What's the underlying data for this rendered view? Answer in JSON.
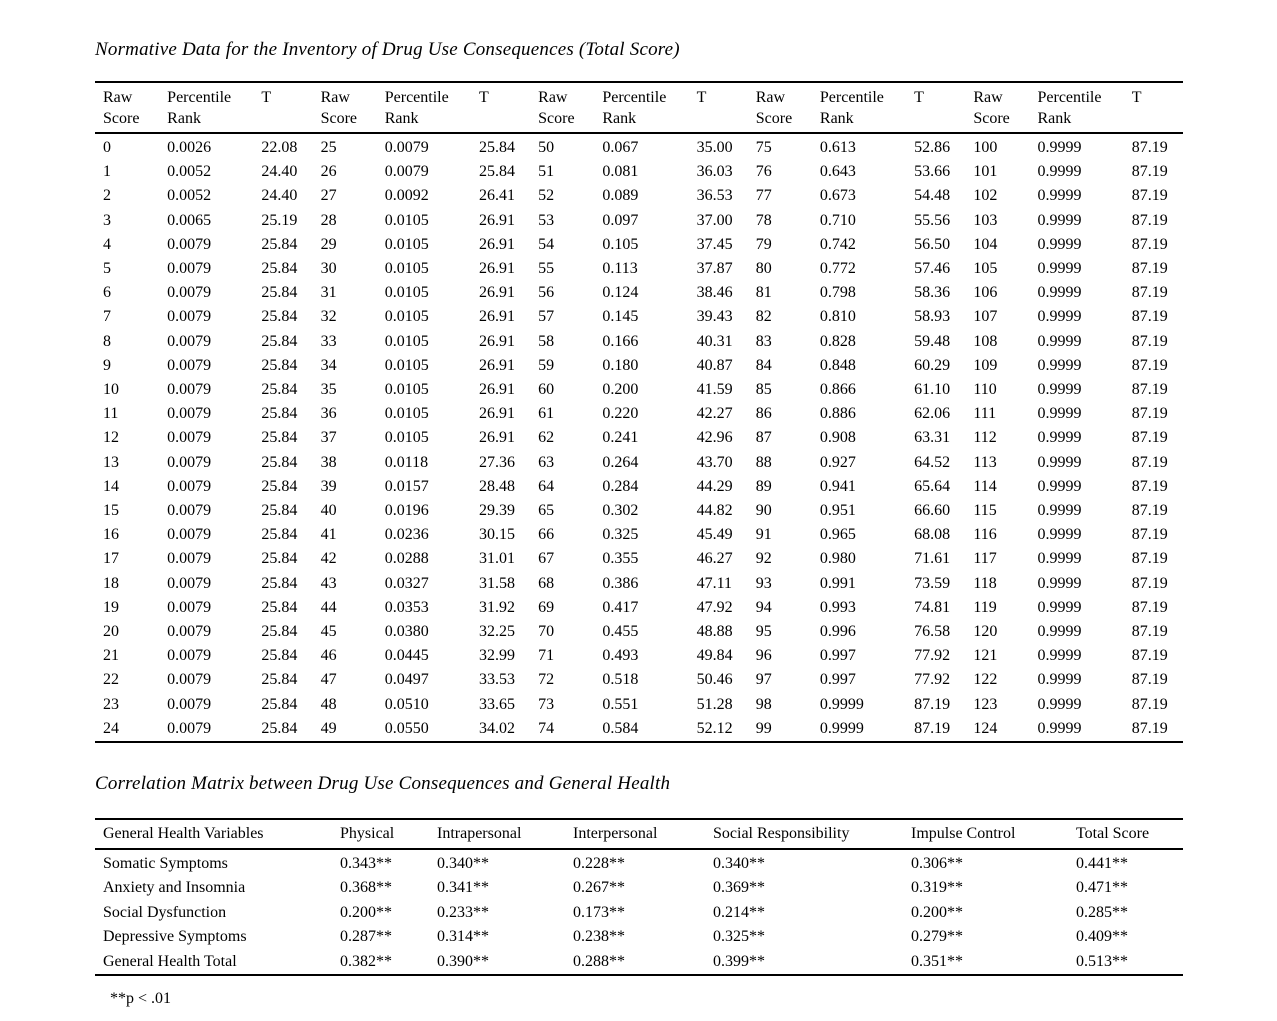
{
  "table1": {
    "title": "Normative Data for the Inventory of Drug Use Consequences (Total Score)",
    "column_headers": [
      "Raw Score",
      "Percentile Rank",
      "T"
    ],
    "group_count": 5,
    "rows": [
      [
        "0",
        "0.0026",
        "22.08",
        "25",
        "0.0079",
        "25.84",
        "50",
        "0.067",
        "35.00",
        "75",
        "0.613",
        "52.86",
        "100",
        "0.9999",
        "87.19"
      ],
      [
        "1",
        "0.0052",
        "24.40",
        "26",
        "0.0079",
        "25.84",
        "51",
        "0.081",
        "36.03",
        "76",
        "0.643",
        "53.66",
        "101",
        "0.9999",
        "87.19"
      ],
      [
        "2",
        "0.0052",
        "24.40",
        "27",
        "0.0092",
        "26.41",
        "52",
        "0.089",
        "36.53",
        "77",
        "0.673",
        "54.48",
        "102",
        "0.9999",
        "87.19"
      ],
      [
        "3",
        "0.0065",
        "25.19",
        "28",
        "0.0105",
        "26.91",
        "53",
        "0.097",
        "37.00",
        "78",
        "0.710",
        "55.56",
        "103",
        "0.9999",
        "87.19"
      ],
      [
        "4",
        "0.0079",
        "25.84",
        "29",
        "0.0105",
        "26.91",
        "54",
        "0.105",
        "37.45",
        "79",
        "0.742",
        "56.50",
        "104",
        "0.9999",
        "87.19"
      ],
      [
        "5",
        "0.0079",
        "25.84",
        "30",
        "0.0105",
        "26.91",
        "55",
        "0.113",
        "37.87",
        "80",
        "0.772",
        "57.46",
        "105",
        "0.9999",
        "87.19"
      ],
      [
        "6",
        "0.0079",
        "25.84",
        "31",
        "0.0105",
        "26.91",
        "56",
        "0.124",
        "38.46",
        "81",
        "0.798",
        "58.36",
        "106",
        "0.9999",
        "87.19"
      ],
      [
        "7",
        "0.0079",
        "25.84",
        "32",
        "0.0105",
        "26.91",
        "57",
        "0.145",
        "39.43",
        "82",
        "0.810",
        "58.93",
        "107",
        "0.9999",
        "87.19"
      ],
      [
        "8",
        "0.0079",
        "25.84",
        "33",
        "0.0105",
        "26.91",
        "58",
        "0.166",
        "40.31",
        "83",
        "0.828",
        "59.48",
        "108",
        "0.9999",
        "87.19"
      ],
      [
        "9",
        "0.0079",
        "25.84",
        "34",
        "0.0105",
        "26.91",
        "59",
        "0.180",
        "40.87",
        "84",
        "0.848",
        "60.29",
        "109",
        "0.9999",
        "87.19"
      ],
      [
        "10",
        "0.0079",
        "25.84",
        "35",
        "0.0105",
        "26.91",
        "60",
        "0.200",
        "41.59",
        "85",
        "0.866",
        "61.10",
        "110",
        "0.9999",
        "87.19"
      ],
      [
        "11",
        "0.0079",
        "25.84",
        "36",
        "0.0105",
        "26.91",
        "61",
        "0.220",
        "42.27",
        "86",
        "0.886",
        "62.06",
        "111",
        "0.9999",
        "87.19"
      ],
      [
        "12",
        "0.0079",
        "25.84",
        "37",
        "0.0105",
        "26.91",
        "62",
        "0.241",
        "42.96",
        "87",
        "0.908",
        "63.31",
        "112",
        "0.9999",
        "87.19"
      ],
      [
        "13",
        "0.0079",
        "25.84",
        "38",
        "0.0118",
        "27.36",
        "63",
        "0.264",
        "43.70",
        "88",
        "0.927",
        "64.52",
        "113",
        "0.9999",
        "87.19"
      ],
      [
        "14",
        "0.0079",
        "25.84",
        "39",
        "0.0157",
        "28.48",
        "64",
        "0.284",
        "44.29",
        "89",
        "0.941",
        "65.64",
        "114",
        "0.9999",
        "87.19"
      ],
      [
        "15",
        "0.0079",
        "25.84",
        "40",
        "0.0196",
        "29.39",
        "65",
        "0.302",
        "44.82",
        "90",
        "0.951",
        "66.60",
        "115",
        "0.9999",
        "87.19"
      ],
      [
        "16",
        "0.0079",
        "25.84",
        "41",
        "0.0236",
        "30.15",
        "66",
        "0.325",
        "45.49",
        "91",
        "0.965",
        "68.08",
        "116",
        "0.9999",
        "87.19"
      ],
      [
        "17",
        "0.0079",
        "25.84",
        "42",
        "0.0288",
        "31.01",
        "67",
        "0.355",
        "46.27",
        "92",
        "0.980",
        "71.61",
        "117",
        "0.9999",
        "87.19"
      ],
      [
        "18",
        "0.0079",
        "25.84",
        "43",
        "0.0327",
        "31.58",
        "68",
        "0.386",
        "47.11",
        "93",
        "0.991",
        "73.59",
        "118",
        "0.9999",
        "87.19"
      ],
      [
        "19",
        "0.0079",
        "25.84",
        "44",
        "0.0353",
        "31.92",
        "69",
        "0.417",
        "47.92",
        "94",
        "0.993",
        "74.81",
        "119",
        "0.9999",
        "87.19"
      ],
      [
        "20",
        "0.0079",
        "25.84",
        "45",
        "0.0380",
        "32.25",
        "70",
        "0.455",
        "48.88",
        "95",
        "0.996",
        "76.58",
        "120",
        "0.9999",
        "87.19"
      ],
      [
        "21",
        "0.0079",
        "25.84",
        "46",
        "0.0445",
        "32.99",
        "71",
        "0.493",
        "49.84",
        "96",
        "0.997",
        "77.92",
        "121",
        "0.9999",
        "87.19"
      ],
      [
        "22",
        "0.0079",
        "25.84",
        "47",
        "0.0497",
        "33.53",
        "72",
        "0.518",
        "50.46",
        "97",
        "0.997",
        "77.92",
        "122",
        "0.9999",
        "87.19"
      ],
      [
        "23",
        "0.0079",
        "25.84",
        "48",
        "0.0510",
        "33.65",
        "73",
        "0.551",
        "51.28",
        "98",
        "0.9999",
        "87.19",
        "123",
        "0.9999",
        "87.19"
      ],
      [
        "24",
        "0.0079",
        "25.84",
        "49",
        "0.0550",
        "34.02",
        "74",
        "0.584",
        "52.12",
        "99",
        "0.9999",
        "87.19",
        "124",
        "0.9999",
        "87.19"
      ]
    ]
  },
  "table2": {
    "title": "Correlation Matrix between Drug Use Consequences and General Health",
    "headers": [
      "General Health Variables",
      "Physical",
      "Intrapersonal",
      "Interpersonal",
      "Social Responsibility",
      "Impulse Control",
      "Total Score"
    ],
    "rows": [
      [
        "Somatic Symptoms",
        "0.343**",
        "0.340**",
        "0.228**",
        "0.340**",
        "0.306**",
        "0.441**"
      ],
      [
        "Anxiety and Insomnia",
        "0.368**",
        "0.341**",
        "0.267**",
        "0.369**",
        "0.319**",
        "0.471**"
      ],
      [
        "Social Dysfunction",
        "0.200**",
        "0.233**",
        "0.173**",
        "0.214**",
        "0.200**",
        "0.285**"
      ],
      [
        "Depressive Symptoms",
        "0.287**",
        "0.314**",
        "0.238**",
        "0.325**",
        "0.279**",
        "0.409**"
      ],
      [
        "General Health Total",
        "0.382**",
        "0.390**",
        "0.288**",
        "0.399**",
        "0.351**",
        "0.513**"
      ]
    ],
    "footnote": "**p < .01"
  }
}
